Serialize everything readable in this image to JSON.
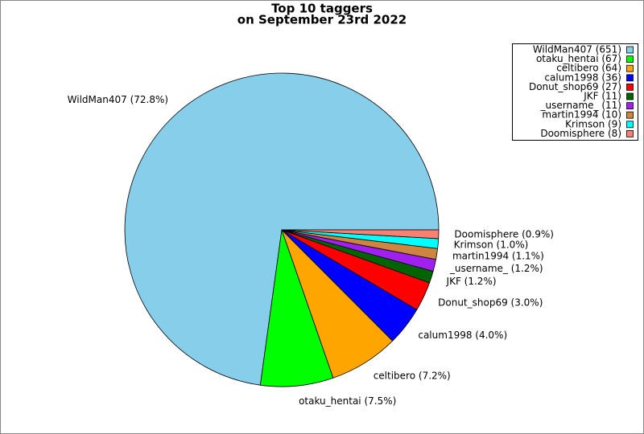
{
  "chart_data": {
    "type": "pie",
    "title": "Top 10 taggers",
    "subtitle": "on September 23rd 2022",
    "categories": [
      "WildMan407 (651)",
      "otaku_hentai (67)",
      "celtibero (64)",
      "calum1998 (36)",
      "Donut_shop69 (27)",
      "JKF (11)",
      "_username_ (11)",
      "martin1994 (10)",
      "Krimson (9)",
      "Doomisphere (8)"
    ],
    "values": [
      651,
      67,
      64,
      36,
      27,
      11,
      11,
      10,
      9,
      8
    ],
    "value_labels": [
      "WildMan407 (72.8%)",
      "otaku_hentai (7.5%)",
      "celtibero (7.2%)",
      "calum1998 (4.0%)",
      "Donut_shop69 (3.0%)",
      "JKF (1.2%)",
      "_username_ (1.2%)",
      "martin1994 (1.1%)",
      "Krimson (1.0%)",
      "Doomisphere (0.9%)"
    ],
    "colors": [
      "#87ceeb",
      "#00ff00",
      "#ffa500",
      "#0000ff",
      "#ff0000",
      "#006400",
      "#a020f0",
      "#cd853f",
      "#00ffff",
      "#fa8072"
    ],
    "legend": "upper right"
  }
}
